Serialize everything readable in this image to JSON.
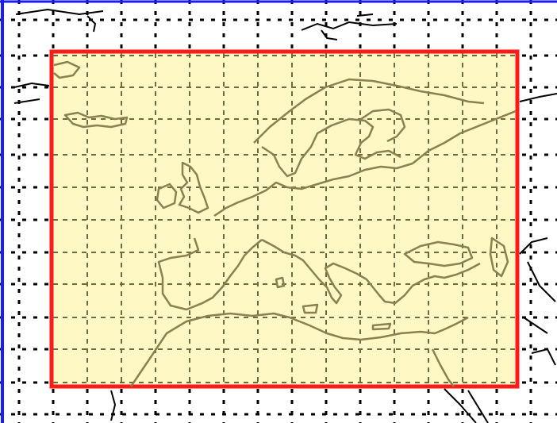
{
  "map": {
    "colors": {
      "background": "#ffffff",
      "frame_border": "#1a1aff",
      "region_fill": "#fdf8c4",
      "region_border": "#ff1a1a",
      "outer_grid": "#000000",
      "inner_grid": "#6f6a42",
      "coastline": "#8a8050",
      "outer_coastline": "#000000"
    },
    "icons": {
      "selection": "selection-rectangle-icon"
    }
  }
}
